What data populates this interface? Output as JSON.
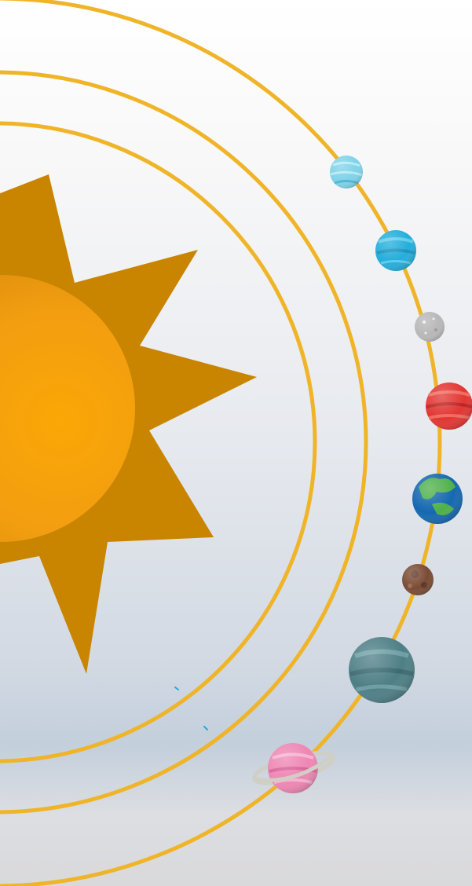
{
  "scene": {
    "title": "",
    "colors": {
      "orbit": "#F0B428",
      "sun_core": "#F5A20A",
      "sun_rays": "#C98500",
      "background_top": "#FFFFFF",
      "background_bottom": "#C8D3DF"
    },
    "planets": [
      {
        "name": "pale-blue-planet",
        "icon": "striped-planet-icon",
        "color": "#7FD3E9"
      },
      {
        "name": "cyan-planet",
        "icon": "striped-planet-icon",
        "color": "#24AEDB"
      },
      {
        "name": "grey-moon",
        "icon": "moon-icon",
        "color": "#B8B8B8"
      },
      {
        "name": "red-planet",
        "icon": "striped-planet-icon",
        "color": "#E23633"
      },
      {
        "name": "earth",
        "icon": "earth-icon",
        "color": "#1568B0"
      },
      {
        "name": "brown-asteroid",
        "icon": "asteroid-icon",
        "color": "#7A4B34"
      },
      {
        "name": "teal-planet",
        "icon": "striped-planet-icon",
        "color": "#4E7F86"
      },
      {
        "name": "pink-ringed-planet",
        "icon": "ringed-planet-icon",
        "color": "#EE86B4"
      }
    ]
  }
}
